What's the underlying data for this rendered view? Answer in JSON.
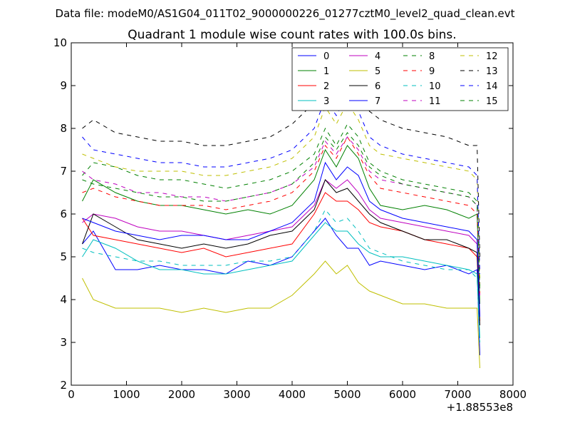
{
  "figure": {
    "suptitle": "Data file: modeM0/AS1G04_011T02_9000000226_01277cztM0_level2_quad_clean.evt"
  },
  "chart_data": {
    "type": "line",
    "title": "Quadrant 1 module wise count rates with 100.0s bins.",
    "xlabel": "",
    "ylabel": "",
    "x_offset_label": "+1.88553e8",
    "xlim": [
      0,
      8000
    ],
    "ylim": [
      2,
      10
    ],
    "xticks": [
      "0",
      "1000",
      "2000",
      "3000",
      "4000",
      "5000",
      "6000",
      "7000",
      "8000"
    ],
    "yticks": [
      "2",
      "3",
      "4",
      "5",
      "6",
      "7",
      "8",
      "9",
      "10"
    ],
    "grid": false,
    "legend": "top-right",
    "x": [
      200,
      400,
      800,
      1200,
      1600,
      2000,
      2400,
      2800,
      3200,
      3600,
      4000,
      4400,
      4600,
      4800,
      5000,
      5200,
      5400,
      5600,
      6000,
      6400,
      6800,
      7200,
      7350,
      7400
    ],
    "series": [
      {
        "name": "0",
        "color": "#0000ff",
        "dash": "solid",
        "values": [
          5.3,
          5.6,
          4.7,
          4.7,
          4.8,
          4.7,
          4.7,
          4.6,
          4.9,
          4.8,
          5.0,
          5.6,
          5.9,
          5.5,
          5.2,
          5.2,
          4.8,
          4.9,
          4.8,
          4.7,
          4.8,
          4.6,
          4.7,
          2.7
        ]
      },
      {
        "name": "1",
        "color": "#008000",
        "dash": "solid",
        "values": [
          6.3,
          6.8,
          6.5,
          6.3,
          6.2,
          6.2,
          6.1,
          6.0,
          6.1,
          6.0,
          6.2,
          6.8,
          7.5,
          7.1,
          7.6,
          7.3,
          6.6,
          6.2,
          6.1,
          6.2,
          6.1,
          5.9,
          6.0,
          3.9
        ]
      },
      {
        "name": "2",
        "color": "#ff0000",
        "dash": "solid",
        "values": [
          5.9,
          5.5,
          5.4,
          5.3,
          5.2,
          5.1,
          5.2,
          5.0,
          5.1,
          5.2,
          5.3,
          6.0,
          6.5,
          6.3,
          6.3,
          6.1,
          5.8,
          5.7,
          5.6,
          5.4,
          5.3,
          5.2,
          5.0,
          3.5
        ]
      },
      {
        "name": "3",
        "color": "#00bfbf",
        "dash": "solid",
        "values": [
          5.0,
          5.4,
          5.2,
          4.9,
          4.7,
          4.7,
          4.6,
          4.6,
          4.7,
          4.8,
          4.9,
          5.5,
          5.8,
          5.6,
          5.6,
          5.3,
          5.1,
          5.0,
          5.0,
          4.9,
          4.8,
          4.7,
          4.6,
          3.1
        ]
      },
      {
        "name": "4",
        "color": "#bf00bf",
        "dash": "solid",
        "values": [
          5.8,
          6.0,
          5.9,
          5.7,
          5.6,
          5.6,
          5.5,
          5.4,
          5.5,
          5.6,
          5.7,
          6.2,
          6.8,
          6.6,
          6.8,
          6.5,
          6.1,
          5.9,
          5.8,
          5.7,
          5.6,
          5.5,
          5.3,
          3.6
        ]
      },
      {
        "name": "5",
        "color": "#bfbf00",
        "dash": "solid",
        "values": [
          4.5,
          4.0,
          3.8,
          3.8,
          3.8,
          3.7,
          3.8,
          3.7,
          3.8,
          3.8,
          4.1,
          4.6,
          4.9,
          4.6,
          4.8,
          4.4,
          4.2,
          4.1,
          3.9,
          3.9,
          3.8,
          3.8,
          3.8,
          2.4
        ]
      },
      {
        "name": "6",
        "color": "#000000",
        "dash": "solid",
        "values": [
          5.3,
          6.0,
          5.7,
          5.4,
          5.3,
          5.2,
          5.3,
          5.2,
          5.3,
          5.5,
          5.6,
          6.1,
          6.8,
          6.5,
          6.6,
          6.3,
          6.0,
          5.8,
          5.6,
          5.4,
          5.4,
          5.2,
          5.1,
          3.4
        ]
      },
      {
        "name": "7",
        "color": "#0000ff",
        "dash": "solid",
        "values": [
          5.9,
          5.8,
          5.6,
          5.5,
          5.4,
          5.5,
          5.5,
          5.4,
          5.4,
          5.6,
          5.8,
          6.3,
          7.2,
          6.8,
          7.1,
          6.9,
          6.3,
          6.1,
          5.9,
          5.8,
          5.7,
          5.6,
          5.4,
          3.6
        ]
      },
      {
        "name": "8",
        "color": "#008000",
        "dash": "dashed",
        "values": [
          6.9,
          7.2,
          7.1,
          6.9,
          6.8,
          6.8,
          6.7,
          6.6,
          6.7,
          6.8,
          7.0,
          7.4,
          8.0,
          7.6,
          8.1,
          7.8,
          7.2,
          7.0,
          6.8,
          6.7,
          6.6,
          6.5,
          6.3,
          4.3
        ]
      },
      {
        "name": "9",
        "color": "#ff0000",
        "dash": "dashed",
        "values": [
          6.5,
          6.6,
          6.4,
          6.3,
          6.2,
          6.2,
          6.2,
          6.1,
          6.2,
          6.3,
          6.5,
          7.0,
          7.6,
          7.3,
          7.8,
          7.4,
          6.9,
          6.6,
          6.5,
          6.4,
          6.3,
          6.2,
          6.0,
          4.1
        ]
      },
      {
        "name": "10",
        "color": "#00bfbf",
        "dash": "dashed",
        "values": [
          5.2,
          5.1,
          5.0,
          4.9,
          4.9,
          4.8,
          4.8,
          4.8,
          4.9,
          4.9,
          5.0,
          5.6,
          6.1,
          5.8,
          5.9,
          5.6,
          5.2,
          5.1,
          4.9,
          4.8,
          4.7,
          4.7,
          4.5,
          3.0
        ]
      },
      {
        "name": "11",
        "color": "#bf00bf",
        "dash": "dashed",
        "values": [
          7.0,
          6.8,
          6.7,
          6.5,
          6.5,
          6.4,
          6.4,
          6.3,
          6.4,
          6.5,
          6.7,
          7.1,
          7.7,
          7.4,
          7.8,
          7.5,
          7.0,
          6.8,
          6.7,
          6.6,
          6.5,
          6.4,
          6.2,
          4.1
        ]
      },
      {
        "name": "12",
        "color": "#bfbf00",
        "dash": "dashed",
        "values": [
          7.4,
          7.3,
          7.1,
          7.0,
          7.0,
          7.0,
          6.9,
          6.9,
          7.0,
          7.1,
          7.3,
          7.8,
          8.5,
          8.1,
          8.6,
          8.2,
          7.6,
          7.4,
          7.3,
          7.2,
          7.1,
          7.0,
          6.8,
          4.5
        ]
      },
      {
        "name": "13",
        "color": "#000000",
        "dash": "dashed",
        "values": [
          8.0,
          8.2,
          7.9,
          7.8,
          7.7,
          7.7,
          7.6,
          7.6,
          7.7,
          7.8,
          8.1,
          8.6,
          9.2,
          8.8,
          9.4,
          9.0,
          8.4,
          8.2,
          8.0,
          7.9,
          7.8,
          7.6,
          7.6,
          5.0
        ]
      },
      {
        "name": "14",
        "color": "#0000ff",
        "dash": "dashed",
        "values": [
          7.8,
          7.5,
          7.4,
          7.3,
          7.2,
          7.2,
          7.1,
          7.1,
          7.2,
          7.3,
          7.5,
          8.0,
          8.7,
          8.3,
          8.8,
          8.4,
          7.8,
          7.6,
          7.4,
          7.3,
          7.2,
          7.1,
          6.9,
          4.6
        ]
      },
      {
        "name": "15",
        "color": "#008000",
        "dash": "dashed",
        "values": [
          6.8,
          6.7,
          6.6,
          6.5,
          6.4,
          6.4,
          6.3,
          6.3,
          6.4,
          6.5,
          6.7,
          7.2,
          7.8,
          7.5,
          7.9,
          7.6,
          7.1,
          6.9,
          6.7,
          6.6,
          6.5,
          6.4,
          6.2,
          4.2
        ]
      }
    ]
  }
}
